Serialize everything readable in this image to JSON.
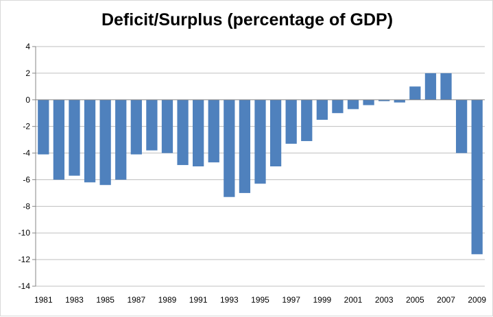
{
  "chart_data": {
    "type": "bar",
    "title": "Deficit/Surplus (percentage of GDP)",
    "xlabel": "",
    "ylabel": "",
    "categories": [
      "1981",
      "1982",
      "1983",
      "1984",
      "1985",
      "1986",
      "1987",
      "1988",
      "1989",
      "1990",
      "1991",
      "1992",
      "1993",
      "1994",
      "1995",
      "1996",
      "1997",
      "1998",
      "1999",
      "2000",
      "2001",
      "2002",
      "2003",
      "2004",
      "2005",
      "2006",
      "2007",
      "2008",
      "2009"
    ],
    "x_tick_labels": [
      "1981",
      "1983",
      "1985",
      "1987",
      "1989",
      "1991",
      "1993",
      "1995",
      "1997",
      "1999",
      "2001",
      "2003",
      "2005",
      "2007",
      "2009"
    ],
    "values": [
      -4.1,
      -6.0,
      -5.7,
      -6.2,
      -6.4,
      -6.0,
      -4.1,
      -3.8,
      -4.0,
      -4.9,
      -5.0,
      -4.7,
      -7.3,
      -7.0,
      -6.3,
      -5.0,
      -3.3,
      -3.1,
      -1.5,
      -1.0,
      -0.7,
      -0.4,
      -0.1,
      -0.2,
      1.0,
      2.0,
      2.0,
      -4.0,
      -11.6
    ],
    "ylim": [
      -14,
      4
    ],
    "yticks": [
      4,
      2,
      0,
      -2,
      -4,
      -6,
      -8,
      -10,
      -12,
      -14
    ],
    "grid": true,
    "legend": "none",
    "bar_color": "#4f81bd",
    "grid_color": "#bfbfbf",
    "axis_color": "#868686"
  }
}
